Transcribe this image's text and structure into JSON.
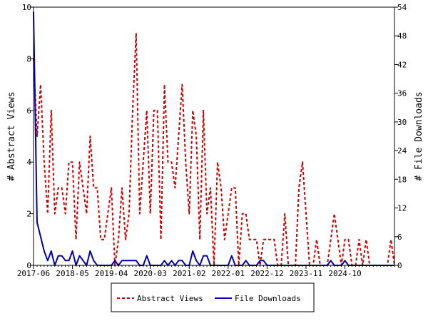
{
  "chart_data": {
    "type": "line",
    "title": "",
    "xlabel": "",
    "ylabel_left": "# Abstract Views",
    "ylabel_right": "# File Downloads",
    "ylim_left": [
      0,
      10
    ],
    "ylim_right": [
      0,
      54
    ],
    "yticks_left": [
      0,
      2,
      4,
      6,
      8,
      10
    ],
    "yticks_right": [
      0,
      6,
      12,
      18,
      24,
      30,
      36,
      42,
      48,
      54
    ],
    "x_tick_labels": [
      "2017-06",
      "2018-05",
      "2019-04",
      "2020-03",
      "2021-02",
      "2022-01",
      "2022-12",
      "2023-11",
      "2024-10"
    ],
    "x_tick_month_index": [
      0,
      11,
      22,
      33,
      44,
      55,
      66,
      77,
      88
    ],
    "x_total_months": 103,
    "grid": false,
    "legend_position": "bottom",
    "series": [
      {
        "name": "Abstract Views",
        "axis": "left",
        "color": "#cc0000",
        "style": "dashed",
        "values": [
          8,
          5,
          7,
          4,
          2,
          6,
          2,
          3,
          3,
          2,
          4,
          4,
          1,
          4,
          3,
          2,
          5,
          3,
          3,
          1,
          1,
          2,
          3,
          0,
          1,
          3,
          1,
          2,
          6,
          9,
          2,
          4,
          6,
          2,
          6,
          6,
          1,
          7,
          4,
          4,
          3,
          5,
          7,
          4,
          2,
          6,
          5,
          1,
          6,
          2,
          3,
          0,
          4,
          3,
          1,
          2,
          3,
          3,
          0,
          2,
          2,
          1,
          1,
          1,
          0,
          1,
          1,
          1,
          1,
          0,
          0,
          2,
          0,
          0,
          0,
          3,
          4,
          2,
          0,
          0,
          1,
          0,
          0,
          0,
          1,
          2,
          1,
          0,
          1,
          1,
          0,
          0,
          1,
          0,
          1,
          0,
          0,
          0,
          0,
          0,
          0,
          1,
          0
        ]
      },
      {
        "name": "File Downloads",
        "axis": "right",
        "color": "#0000aa",
        "style": "solid",
        "values": [
          53,
          9,
          6,
          3,
          1,
          3,
          0,
          2,
          2,
          1,
          1,
          3,
          0,
          2,
          1,
          0,
          3,
          1,
          0,
          0,
          0,
          0,
          0,
          1,
          0,
          1,
          1,
          1,
          1,
          1,
          0,
          0,
          2,
          0,
          0,
          0,
          0,
          1,
          0,
          1,
          0,
          1,
          1,
          0,
          0,
          3,
          1,
          0,
          2,
          2,
          0,
          0,
          0,
          0,
          0,
          0,
          2,
          0,
          0,
          0,
          1,
          0,
          0,
          0,
          1,
          1,
          0,
          0,
          0,
          0,
          0,
          0,
          0,
          0,
          0,
          0,
          0,
          0,
          0,
          0,
          0,
          0,
          0,
          0,
          1,
          0,
          0,
          0,
          1,
          0,
          0,
          0,
          0,
          0,
          0,
          0,
          0,
          0,
          0,
          0,
          0,
          0,
          0
        ]
      }
    ]
  }
}
